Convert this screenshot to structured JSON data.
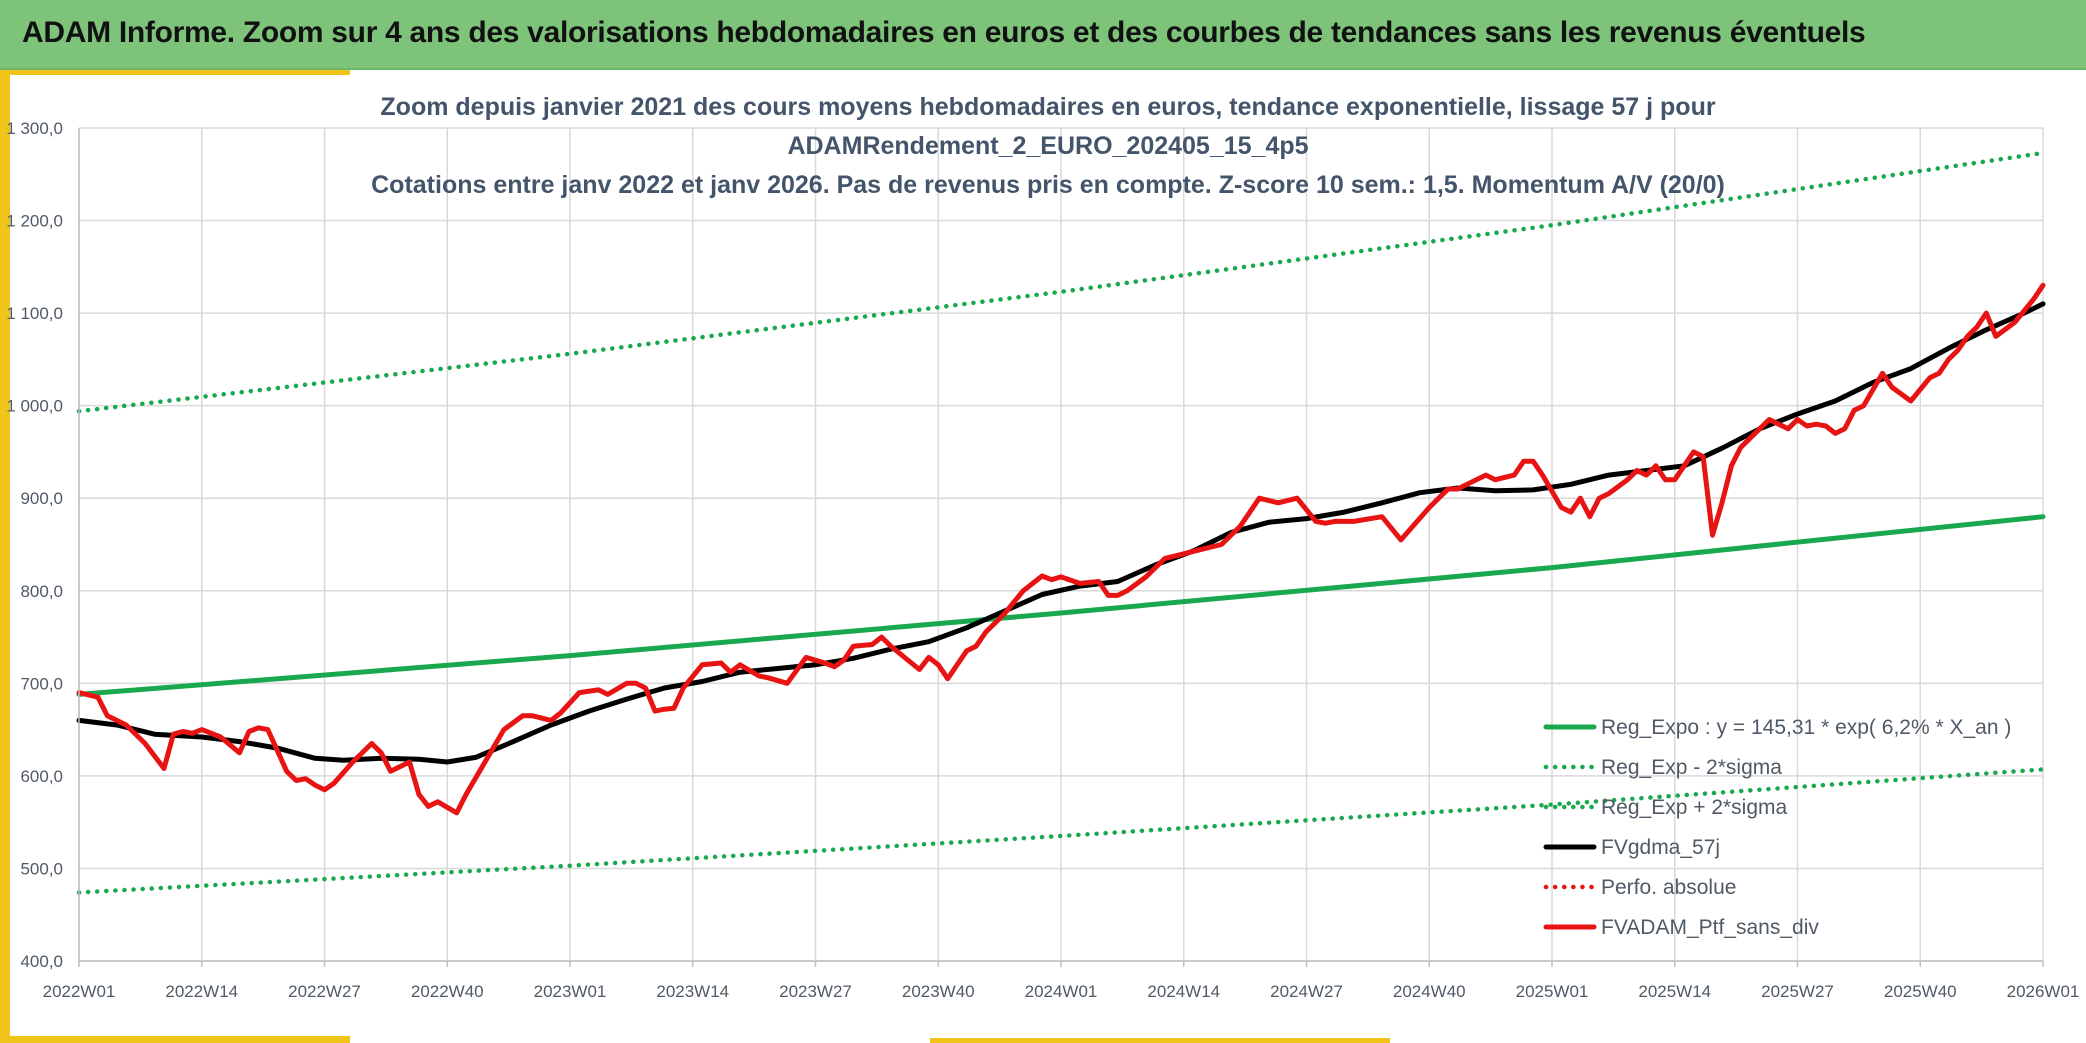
{
  "banner": {
    "title": "ADAM Informe. Zoom sur 4 ans des valorisations hebdomadaires en euros et des courbes de tendances sans les revenus éventuels"
  },
  "colors": {
    "banner": "#7dc47a",
    "accent": "#f0c419",
    "green": "#1aa84f",
    "black": "#000000",
    "red": "#e81414",
    "grid": "#d9d9d9"
  },
  "chart_data": {
    "type": "line",
    "title_lines": [
      "Zoom depuis janvier 2021 des cours moyens hebdomadaires en euros, tendance exponentielle, lissage 57 j pour",
      "ADAMRendement_2_EURO_202405_15_4p5",
      "Cotations entre janv 2022 et janv 2026. Pas de revenus pris en compte. Z-score 10 sem.: 1,5. Momentum A/V (20/0)"
    ],
    "xlabel": "",
    "ylabel": "",
    "x_unit": "weeks since 2022W01",
    "xlim": [
      0,
      208
    ],
    "ylim": [
      400,
      1300
    ],
    "yticks": [
      {
        "value": 400,
        "label": "400,0"
      },
      {
        "value": 500,
        "label": "500,0"
      },
      {
        "value": 600,
        "label": "600,0"
      },
      {
        "value": 700,
        "label": "700,0"
      },
      {
        "value": 800,
        "label": "800,0"
      },
      {
        "value": 900,
        "label": "900,0"
      },
      {
        "value": 1000,
        "label": "1 000,0"
      },
      {
        "value": 1100,
        "label": "1 100,0"
      },
      {
        "value": 1200,
        "label": "1 200,0"
      },
      {
        "value": 1300,
        "label": "1 300,0"
      }
    ],
    "xticks": [
      {
        "value": 0,
        "label": "2022W01"
      },
      {
        "value": 13,
        "label": "2022W14"
      },
      {
        "value": 26,
        "label": "2022W27"
      },
      {
        "value": 39,
        "label": "2022W40"
      },
      {
        "value": 52,
        "label": "2023W01"
      },
      {
        "value": 65,
        "label": "2023W14"
      },
      {
        "value": 78,
        "label": "2023W27"
      },
      {
        "value": 91,
        "label": "2023W40"
      },
      {
        "value": 104,
        "label": "2024W01"
      },
      {
        "value": 117,
        "label": "2024W14"
      },
      {
        "value": 130,
        "label": "2024W27"
      },
      {
        "value": 143,
        "label": "2024W40"
      },
      {
        "value": 156,
        "label": "2025W01"
      },
      {
        "value": 169,
        "label": "2025W14"
      },
      {
        "value": 182,
        "label": "2025W27"
      },
      {
        "value": 195,
        "label": "2025W40"
      },
      {
        "value": 208,
        "label": "2026W01"
      }
    ],
    "grid": true,
    "legend_position": "bottom-right",
    "series": [
      {
        "name": "Reg_Expo : y = 145,31 * exp( 6,2% *  X_an )",
        "color": "#1aa84f",
        "style": "solid",
        "x": [
          0,
          52,
          104,
          156,
          208
        ],
        "y": [
          688,
          730,
          776,
          825,
          880
        ]
      },
      {
        "name": "Reg_Exp - 2*sigma",
        "color": "#1aa84f",
        "style": "dotted",
        "x": [
          0,
          52,
          104,
          156,
          208
        ],
        "y": [
          474,
          503,
          535,
          569,
          607
        ]
      },
      {
        "name": "Reg_Exp + 2*sigma",
        "color": "#1aa84f",
        "style": "dotted",
        "x": [
          0,
          52,
          104,
          156,
          208
        ],
        "y": [
          994,
          1056,
          1123,
          1195,
          1273
        ]
      },
      {
        "name": "FVgdma_57j",
        "color": "#000000",
        "style": "solid",
        "x": [
          0,
          4,
          8,
          13,
          17,
          21,
          25,
          28,
          32,
          36,
          39,
          42,
          46,
          50,
          54,
          58,
          62,
          66,
          70,
          74,
          78,
          82,
          86,
          90,
          94,
          98,
          102,
          106,
          110,
          114,
          118,
          122,
          126,
          130,
          134,
          138,
          142,
          146,
          150,
          154,
          158,
          162,
          166,
          170,
          174,
          178,
          182,
          186,
          190,
          194,
          198,
          202,
          206,
          208
        ],
        "y": [
          660,
          655,
          645,
          642,
          637,
          630,
          619,
          617,
          619,
          618,
          615,
          620,
          637,
          655,
          670,
          683,
          695,
          702,
          712,
          716,
          720,
          727,
          737,
          745,
          760,
          778,
          796,
          805,
          810,
          828,
          843,
          863,
          874,
          878,
          885,
          895,
          906,
          911,
          908,
          909,
          915,
          925,
          930,
          935,
          954,
          975,
          991,
          1005,
          1025,
          1040,
          1062,
          1082,
          1100,
          1110
        ]
      },
      {
        "name": "Perfo. absolue",
        "color": "#e81414",
        "style": "dotted",
        "x": [],
        "y": []
      },
      {
        "name": "FVADAM_Ptf_sans_div",
        "color": "#e81414",
        "style": "solid",
        "x": [
          0,
          2,
          3,
          5,
          7,
          9,
          10,
          11,
          12,
          13,
          15,
          17,
          18,
          19,
          20,
          22,
          23,
          24,
          25,
          26,
          27,
          29,
          31,
          32,
          33,
          35,
          36,
          37,
          38,
          40,
          41,
          43,
          45,
          47,
          48,
          50,
          51,
          53,
          55,
          56,
          58,
          59,
          60,
          61,
          62,
          63,
          64,
          66,
          68,
          69,
          70,
          72,
          73,
          75,
          77,
          79,
          80,
          81,
          82,
          84,
          85,
          86,
          89,
          90,
          91,
          92,
          94,
          95,
          96,
          98,
          100,
          102,
          103,
          104,
          106,
          108,
          109,
          110,
          111,
          113,
          115,
          117,
          119,
          121,
          123,
          124,
          125,
          127,
          129,
          131,
          132,
          133,
          135,
          138,
          140,
          143,
          144,
          145,
          146,
          147,
          149,
          150,
          152,
          153,
          154,
          155,
          157,
          158,
          159,
          160,
          161,
          162,
          164,
          165,
          166,
          167,
          168,
          169,
          170,
          171,
          172,
          173,
          174,
          175,
          176,
          178,
          179,
          181,
          182,
          183,
          184,
          185,
          186,
          187,
          188,
          189,
          191,
          192,
          194,
          196,
          197,
          198,
          199,
          200,
          201,
          202,
          203,
          205,
          207,
          208
        ],
        "y": [
          690,
          685,
          665,
          655,
          635,
          608,
          645,
          648,
          646,
          650,
          642,
          625,
          648,
          652,
          650,
          605,
          595,
          597,
          590,
          585,
          592,
          615,
          635,
          625,
          605,
          615,
          580,
          567,
          572,
          560,
          580,
          615,
          650,
          665,
          665,
          660,
          668,
          690,
          693,
          688,
          700,
          700,
          695,
          670,
          672,
          673,
          695,
          720,
          722,
          712,
          720,
          708,
          706,
          700,
          728,
          722,
          718,
          725,
          740,
          742,
          750,
          740,
          715,
          728,
          720,
          705,
          735,
          740,
          755,
          775,
          800,
          816,
          812,
          815,
          808,
          810,
          795,
          795,
          800,
          815,
          835,
          840,
          845,
          850,
          870,
          885,
          900,
          895,
          900,
          875,
          873,
          875,
          875,
          880,
          855,
          890,
          900,
          910,
          910,
          915,
          925,
          920,
          925,
          940,
          940,
          925,
          890,
          885,
          900,
          880,
          900,
          905,
          920,
          930,
          925,
          935,
          920,
          920,
          935,
          950,
          945,
          860,
          895,
          935,
          955,
          975,
          985,
          975,
          985,
          978,
          980,
          978,
          970,
          975,
          995,
          1000,
          1035,
          1020,
          1005,
          1030,
          1035,
          1050,
          1060,
          1075,
          1085,
          1100,
          1075,
          1090,
          1115,
          1130
        ]
      }
    ]
  }
}
